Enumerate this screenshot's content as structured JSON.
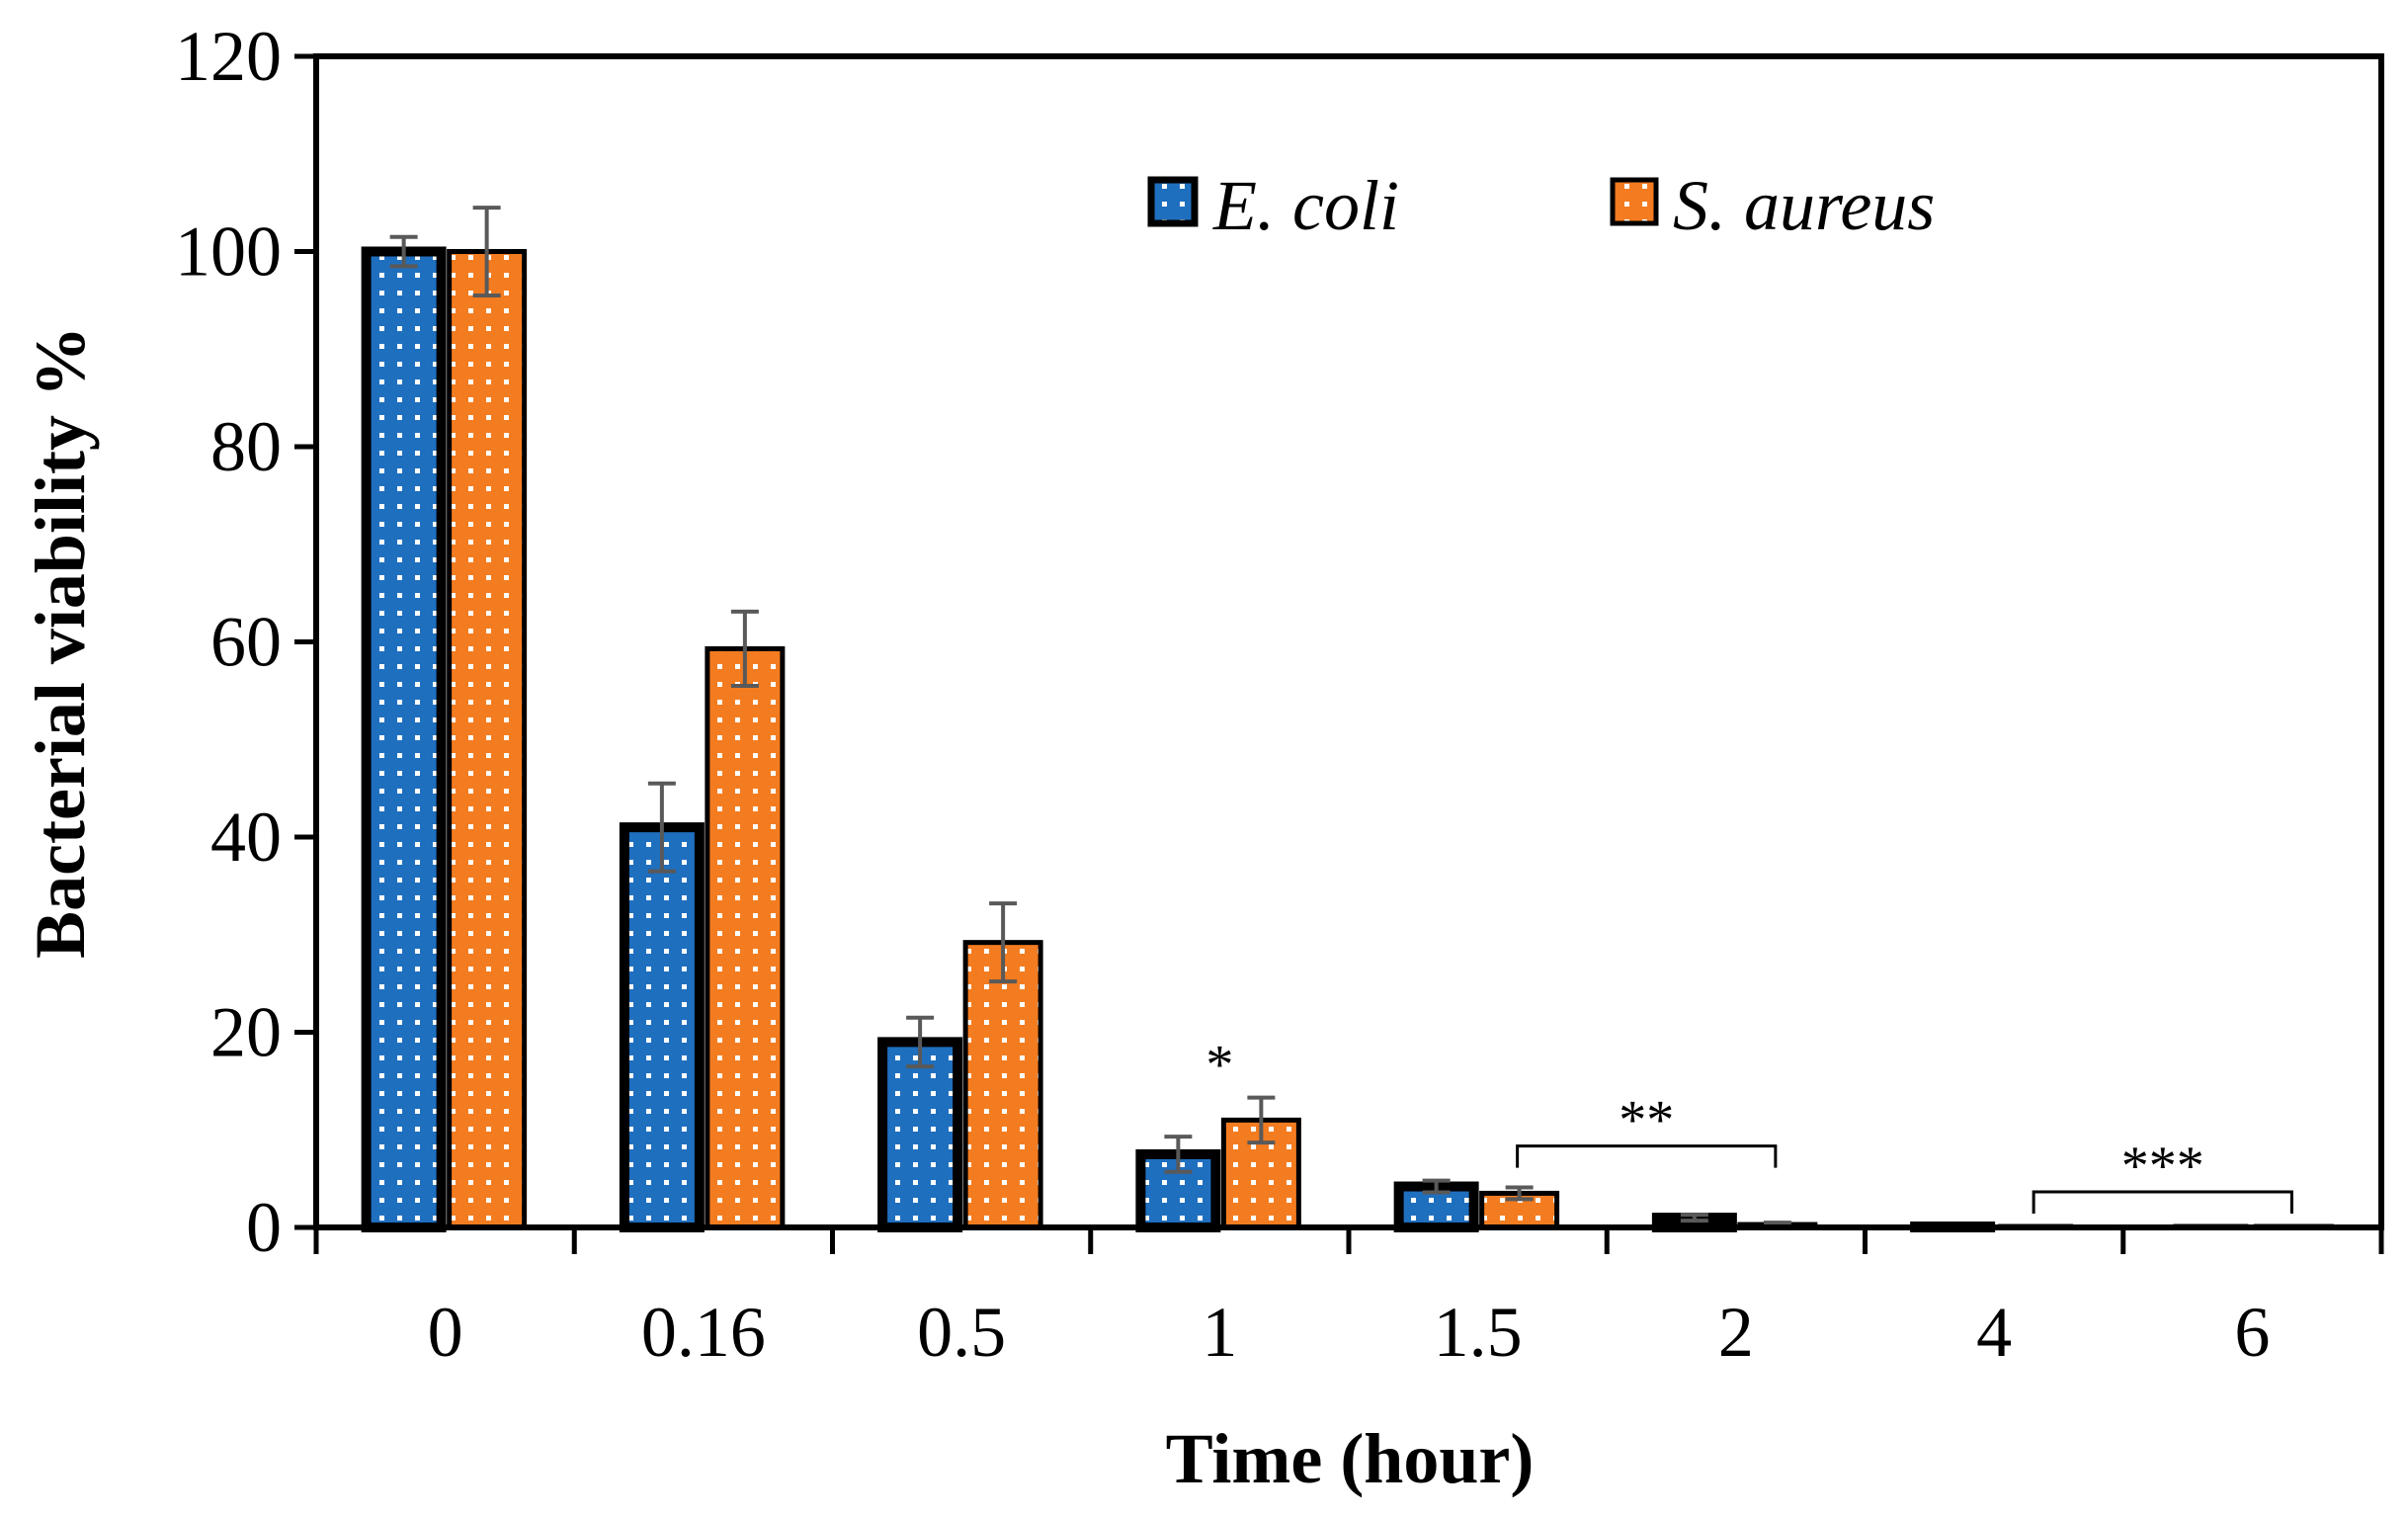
{
  "chart_data": {
    "type": "bar",
    "title": "",
    "xlabel": "Time (hour)",
    "ylabel": "Bacterial viability %",
    "categories": [
      "0",
      "0.16",
      "0.5",
      "1",
      "1.5",
      "2",
      "4",
      "6"
    ],
    "ylim": [
      0,
      120
    ],
    "yticks": [
      0,
      20,
      40,
      60,
      80,
      100,
      120
    ],
    "grid": false,
    "legend_position": "top-right",
    "series": [
      {
        "name": "E. coli",
        "color": "#1f6fbf",
        "values": [
          100,
          41,
          19,
          7.5,
          4.2,
          1.0,
          0.1,
          0
        ],
        "errors": [
          1.5,
          4.5,
          2.5,
          1.8,
          0.6,
          0.3,
          0,
          0
        ]
      },
      {
        "name": "S. aureus",
        "color": "#f47c20",
        "values": [
          100,
          59.3,
          29.2,
          11,
          3.5,
          0.3,
          0,
          0.1
        ],
        "errors": [
          4.5,
          3.8,
          4.0,
          2.3,
          0.6,
          0.2,
          0,
          0
        ]
      }
    ],
    "annotations": [
      {
        "text": "*",
        "category": "1",
        "type": "single"
      },
      {
        "text": "**",
        "from": "1.5",
        "to": "2",
        "type": "bracket"
      },
      {
        "text": "***",
        "from": "4",
        "to": "6",
        "type": "bracket"
      }
    ]
  }
}
